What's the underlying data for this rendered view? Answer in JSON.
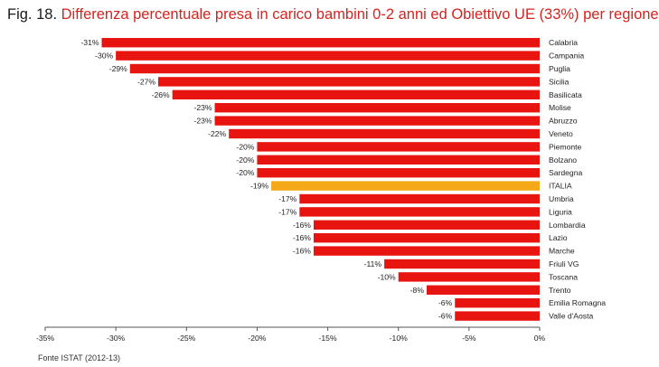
{
  "title": {
    "prefix": "Fig. 18.",
    "text": "Differenza percentuale presa in carico bambini 0-2 anni ed Obiettivo UE (33%) per regione"
  },
  "source": "Fonte ISTAT (2012-13)",
  "colors": {
    "bar": "#e8140f",
    "highlight": "#f5a818",
    "axis": "#555555"
  },
  "chart_data": {
    "type": "bar",
    "orientation": "horizontal",
    "categories": [
      "Calabria",
      "Campania",
      "Puglia",
      "Sicilia",
      "Basilicata",
      "Molise",
      "Abruzzo",
      "Veneto",
      "Piemonte",
      "Bolzano",
      "Sardegna",
      "ITALIA",
      "Umbria",
      "Liguria",
      "Lombardia",
      "Lazio",
      "Marche",
      "Friuli VG",
      "Toscana",
      "Trento",
      "Emilia Romagna",
      "Valle d'Aosta"
    ],
    "values": [
      -31,
      -30,
      -29,
      -27,
      -26,
      -23,
      -23,
      -22,
      -20,
      -20,
      -20,
      -19,
      -17,
      -17,
      -16,
      -16,
      -16,
      -11,
      -10,
      -8,
      -6,
      -6
    ],
    "data_labels": [
      "-31%",
      "-30%",
      "-29%",
      "-27%",
      "-26%",
      "-23%",
      "-23%",
      "-22%",
      "-20%",
      "-20%",
      "-20%",
      "-19%",
      "-17%",
      "-17%",
      "-16%",
      "-16%",
      "-16%",
      "-11%",
      "-10%",
      "-8%",
      "-6%",
      "-6%"
    ],
    "highlight": "ITALIA",
    "xlim": [
      -35,
      0
    ],
    "xticks": [
      -35,
      -30,
      -25,
      -20,
      -15,
      -10,
      -5,
      0
    ],
    "xtick_labels": [
      "-35%",
      "-30%",
      "-25%",
      "-20%",
      "-15%",
      "-10%",
      "-5%",
      "0%"
    ],
    "grid": false,
    "legend": "none"
  }
}
